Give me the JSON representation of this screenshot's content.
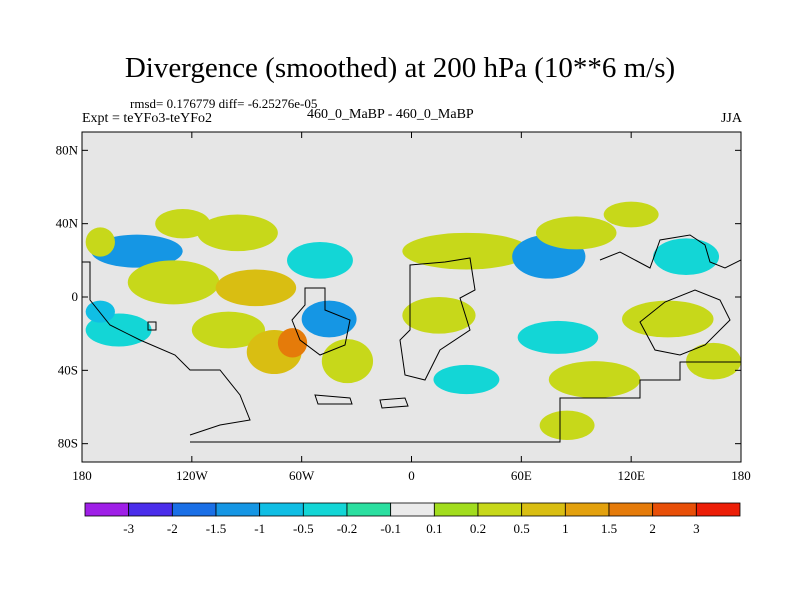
{
  "title": "Divergence (smoothed) at 200 hPa (10**6 m/s)",
  "stats": "rmsd= 0.176779 diff= -6.25276e-05",
  "experiment": "Expt = teYFo3-teYFo2",
  "center_label": "460_0_MaBP - 460_0_MaBP",
  "season": "JJA",
  "map": {
    "background_color": "#e6e6e6",
    "lon_range": [
      -180,
      180
    ],
    "lat_range": [
      -90,
      90
    ],
    "lat_ticks": [
      {
        "value": 80,
        "label": "80N"
      },
      {
        "value": 40,
        "label": "40N"
      },
      {
        "value": 0,
        "label": "0"
      },
      {
        "value": -40,
        "label": "40S"
      },
      {
        "value": -80,
        "label": "80S"
      }
    ],
    "lon_ticks": [
      {
        "value": -180,
        "label": "180"
      },
      {
        "value": -120,
        "label": "120W"
      },
      {
        "value": -60,
        "label": "60W"
      },
      {
        "value": 0,
        "label": "0"
      },
      {
        "value": 60,
        "label": "60E"
      },
      {
        "value": 120,
        "label": "120E"
      },
      {
        "value": 180,
        "label": "180"
      }
    ]
  },
  "colorbar": {
    "colors": [
      "#9f1fe7",
      "#4a2dea",
      "#1a6fe6",
      "#1596e4",
      "#10bee4",
      "#13d6d6",
      "#2bdfa0",
      "#ebebeb",
      "#a2dd1e",
      "#c7d81a",
      "#d9be12",
      "#e3a10e",
      "#e57b0a",
      "#e84f08",
      "#ec1e07"
    ],
    "labels": [
      "-3",
      "-2",
      "-1.5",
      "-1",
      "-0.5",
      "-0.2",
      "-0.1",
      "0.1",
      "0.2",
      "0.5",
      "1",
      "1.5",
      "2",
      "3"
    ]
  },
  "chart_data": {
    "type": "contour-map",
    "title": "Divergence (smoothed) at 200 hPa (10**6 m/s)",
    "units": "10**6 m/s",
    "levels": [
      -3,
      -2,
      -1.5,
      -1,
      -0.5,
      -0.2,
      -0.1,
      0.1,
      0.2,
      0.5,
      1,
      1.5,
      2,
      3
    ],
    "regions": [
      {
        "lon": -150,
        "lat": 25,
        "rlon": 25,
        "rlat": 9,
        "level": 3
      },
      {
        "lon": -160,
        "lat": -18,
        "rlon": 18,
        "rlat": 9,
        "level": 5
      },
      {
        "lon": -130,
        "lat": 8,
        "rlon": 25,
        "rlat": 12,
        "level": 9
      },
      {
        "lon": -125,
        "lat": 40,
        "rlon": 15,
        "rlat": 8,
        "level": 9
      },
      {
        "lon": -170,
        "lat": 30,
        "rlon": 8,
        "rlat": 8,
        "level": 9
      },
      {
        "lon": -170,
        "lat": -8,
        "rlon": 8,
        "rlat": 6,
        "level": 4
      },
      {
        "lon": -100,
        "lat": -18,
        "rlon": 20,
        "rlat": 10,
        "level": 9
      },
      {
        "lon": -85,
        "lat": 5,
        "rlon": 22,
        "rlat": 10,
        "level": 10
      },
      {
        "lon": -95,
        "lat": 35,
        "rlon": 22,
        "rlat": 10,
        "level": 9
      },
      {
        "lon": -75,
        "lat": -30,
        "rlon": 15,
        "rlat": 12,
        "level": 10
      },
      {
        "lon": -65,
        "lat": -25,
        "rlon": 8,
        "rlat": 8,
        "level": 12
      },
      {
        "lon": -50,
        "lat": 20,
        "rlon": 18,
        "rlat": 10,
        "level": 5
      },
      {
        "lon": -45,
        "lat": -12,
        "rlon": 15,
        "rlat": 10,
        "level": 3
      },
      {
        "lon": -35,
        "lat": -35,
        "rlon": 14,
        "rlat": 12,
        "level": 9
      },
      {
        "lon": 15,
        "lat": -10,
        "rlon": 20,
        "rlat": 10,
        "level": 9
      },
      {
        "lon": 30,
        "lat": 25,
        "rlon": 35,
        "rlat": 10,
        "level": 9
      },
      {
        "lon": 75,
        "lat": 22,
        "rlon": 20,
        "rlat": 12,
        "level": 3
      },
      {
        "lon": 90,
        "lat": 35,
        "rlon": 22,
        "rlat": 9,
        "level": 9
      },
      {
        "lon": 120,
        "lat": 45,
        "rlon": 15,
        "rlat": 7,
        "level": 9
      },
      {
        "lon": 150,
        "lat": 22,
        "rlon": 18,
        "rlat": 10,
        "level": 5
      },
      {
        "lon": 140,
        "lat": -12,
        "rlon": 25,
        "rlat": 10,
        "level": 9
      },
      {
        "lon": 165,
        "lat": -35,
        "rlon": 15,
        "rlat": 10,
        "level": 9
      },
      {
        "lon": 80,
        "lat": -22,
        "rlon": 22,
        "rlat": 9,
        "level": 5
      },
      {
        "lon": 100,
        "lat": -45,
        "rlon": 25,
        "rlat": 10,
        "level": 9
      },
      {
        "lon": 30,
        "lat": -45,
        "rlon": 18,
        "rlat": 8,
        "level": 5
      },
      {
        "lon": 85,
        "lat": -70,
        "rlon": 15,
        "rlat": 8,
        "level": 9
      }
    ]
  }
}
